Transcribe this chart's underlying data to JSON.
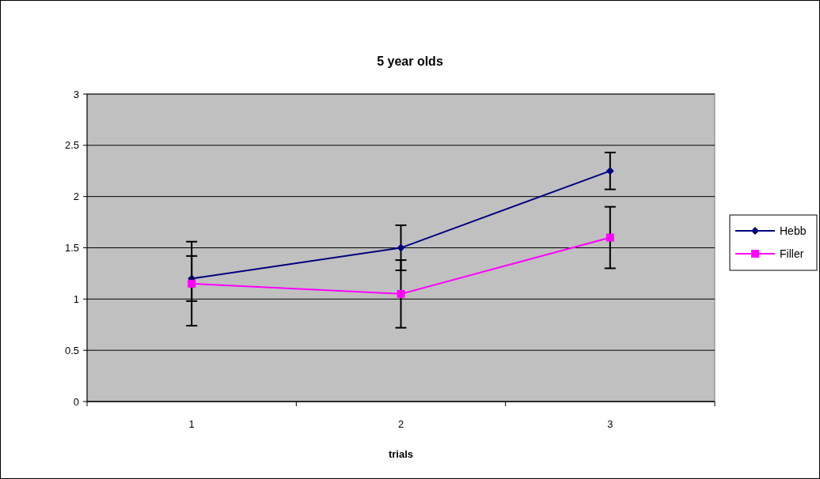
{
  "chart_data": {
    "type": "line",
    "title": "5 year olds",
    "xlabel": "trials",
    "categories": [
      "1",
      "2",
      "3"
    ],
    "series": [
      {
        "name": "Hebb",
        "color": "#000080",
        "values": [
          1.2,
          1.5,
          2.25
        ],
        "errors": [
          0.22,
          0.22,
          0.18
        ],
        "marker": "diamond"
      },
      {
        "name": "Filler",
        "color": "#ff00ff",
        "values": [
          1.15,
          1.05,
          1.6
        ],
        "errors": [
          0.41,
          0.33,
          0.3
        ],
        "marker": "square"
      }
    ],
    "ylim": [
      0,
      3
    ],
    "yticks": [
      0,
      0.5,
      1,
      1.5,
      2,
      2.5,
      3
    ],
    "grid": "y",
    "legend": "right"
  }
}
